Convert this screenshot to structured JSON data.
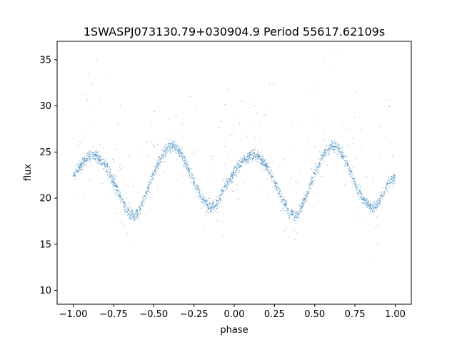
{
  "chart_data": {
    "type": "scatter",
    "title": "1SWASPJ073130.79+030904.9 Period 55617.62109s",
    "xlabel": "phase",
    "ylabel": "flux",
    "xlim": [
      -1.1,
      1.1
    ],
    "ylim": [
      8.5,
      37
    ],
    "xticks": [
      -1.0,
      -0.75,
      -0.5,
      -0.25,
      0.0,
      0.25,
      0.5,
      0.75,
      1.0
    ],
    "xtick_labels": [
      "−1.00",
      "−0.75",
      "−0.50",
      "−0.25",
      "0.00",
      "0.25",
      "0.50",
      "0.75",
      "1.00"
    ],
    "yticks": [
      10,
      15,
      20,
      25,
      30,
      35
    ],
    "ytick_labels": [
      "10",
      "15",
      "20",
      "25",
      "30",
      "35"
    ],
    "grid": false,
    "point_color": "#1f77b4",
    "series": [
      {
        "x": [
          -1.0,
          -0.95,
          -0.9,
          -0.87,
          -0.85,
          -0.8,
          -0.75,
          -0.7,
          -0.65,
          -0.62,
          -0.6,
          -0.55,
          -0.5,
          -0.45,
          -0.4,
          -0.38,
          -0.35,
          -0.3,
          -0.25,
          -0.2,
          -0.15,
          -0.13,
          -0.1,
          -0.05,
          0.0,
          0.05,
          0.1,
          0.13,
          0.15,
          0.2,
          0.25,
          0.3,
          0.35,
          0.38,
          0.4,
          0.45,
          0.5,
          0.55,
          0.6,
          0.62,
          0.65,
          0.7,
          0.75,
          0.8,
          0.85,
          0.87,
          0.9,
          0.95,
          1.0
        ],
        "y": [
          22.4,
          23.6,
          24.5,
          24.7,
          24.5,
          23.5,
          21.8,
          19.8,
          18.3,
          18.1,
          18.4,
          20.3,
          22.7,
          24.6,
          25.6,
          25.7,
          25.3,
          23.8,
          21.7,
          19.9,
          19.0,
          19.0,
          19.6,
          21.4,
          22.8,
          23.9,
          24.6,
          24.7,
          24.5,
          23.5,
          21.8,
          19.8,
          18.3,
          18.1,
          18.4,
          20.3,
          22.7,
          24.6,
          25.6,
          25.7,
          25.3,
          23.8,
          21.7,
          19.9,
          19.0,
          19.0,
          19.6,
          21.4,
          22.4
        ]
      }
    ]
  }
}
